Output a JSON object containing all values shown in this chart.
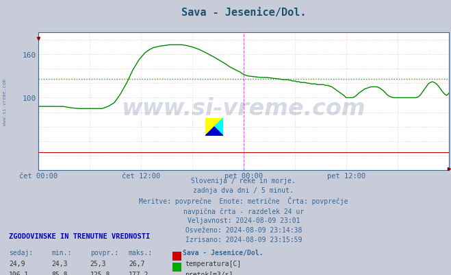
{
  "title": "Sava - Jesenice/Dol.",
  "title_color": "#1a5276",
  "bg_color": "#c8ccd8",
  "plot_bg_color": "#ffffff",
  "fig_width": 6.59,
  "fig_height": 4.02,
  "dpi": 100,
  "ylim": [
    0,
    190
  ],
  "yticks": [
    100,
    160
  ],
  "xlabel_ticks": [
    "čet 00:00",
    "čet 12:00",
    "pet 00:00",
    "pet 12:00"
  ],
  "xlabel_tick_positions": [
    0.0,
    0.25,
    0.5,
    0.75
  ],
  "grid_color_h": "#ffaaaa",
  "grid_color_v": "#ffaaaa",
  "avg_line_color": "#00bb00",
  "avg_line_value": 125.8,
  "vline_color": "#ff44ff",
  "red_line_color": "#bb0000",
  "green_line_color": "#008800",
  "watermark_text": "www.si-vreme.com",
  "watermark_color": "#1a3a6b",
  "watermark_alpha": 0.18,
  "subtitle_lines": [
    "Slovenija / reke in morje.",
    "zadnja dva dni / 5 minut.",
    "Meritve: povprečne  Enote: metrične  Črta: povprečje",
    "navpična črta - razdelek 24 ur",
    "Veljavnost: 2024-08-09 23:01",
    "Osveženo: 2024-08-09 23:14:38",
    "Izrisano: 2024-08-09 23:15:59"
  ],
  "table_header": "ZGODOVINSKE IN TRENUTNE VREDNOSTI",
  "table_cols": [
    "sedaj:",
    "min.:",
    "povpr.:",
    "maks.:"
  ],
  "table_col_header": "Sava - Jesenice/Dol.",
  "table_rows": [
    {
      "values": [
        "24,9",
        "24,3",
        "25,3",
        "26,7"
      ],
      "label": "temperatura[C]",
      "color": "#cc0000"
    },
    {
      "values": [
        "106,1",
        "85,8",
        "125,8",
        "177,2"
      ],
      "label": "pretok[m3/s]",
      "color": "#00aa00"
    }
  ],
  "temp_data_value": 25.0,
  "n_points": 576,
  "flow_keypoints": [
    [
      0.0,
      88
    ],
    [
      0.06,
      88
    ],
    [
      0.08,
      86
    ],
    [
      0.1,
      85
    ],
    [
      0.12,
      85
    ],
    [
      0.14,
      85
    ],
    [
      0.155,
      85
    ],
    [
      0.16,
      86
    ],
    [
      0.17,
      88
    ],
    [
      0.185,
      93
    ],
    [
      0.2,
      105
    ],
    [
      0.215,
      120
    ],
    [
      0.23,
      138
    ],
    [
      0.245,
      152
    ],
    [
      0.26,
      162
    ],
    [
      0.27,
      166
    ],
    [
      0.28,
      169
    ],
    [
      0.295,
      171
    ],
    [
      0.31,
      172
    ],
    [
      0.32,
      173
    ],
    [
      0.34,
      173
    ],
    [
      0.35,
      173
    ],
    [
      0.36,
      172
    ],
    [
      0.375,
      170
    ],
    [
      0.39,
      167
    ],
    [
      0.405,
      163
    ],
    [
      0.415,
      160
    ],
    [
      0.425,
      157
    ],
    [
      0.44,
      152
    ],
    [
      0.455,
      147
    ],
    [
      0.465,
      143
    ],
    [
      0.475,
      140
    ],
    [
      0.485,
      137
    ],
    [
      0.49,
      136
    ],
    [
      0.495,
      134
    ],
    [
      0.5,
      132
    ],
    [
      0.51,
      130
    ],
    [
      0.525,
      129
    ],
    [
      0.54,
      128
    ],
    [
      0.555,
      128
    ],
    [
      0.57,
      127
    ],
    [
      0.585,
      126
    ],
    [
      0.595,
      125
    ],
    [
      0.605,
      125
    ],
    [
      0.615,
      124
    ],
    [
      0.62,
      123
    ],
    [
      0.625,
      123
    ],
    [
      0.63,
      122
    ],
    [
      0.635,
      122
    ],
    [
      0.64,
      121
    ],
    [
      0.645,
      121
    ],
    [
      0.65,
      121
    ],
    [
      0.655,
      120
    ],
    [
      0.66,
      120
    ],
    [
      0.665,
      119
    ],
    [
      0.67,
      119
    ],
    [
      0.675,
      119
    ],
    [
      0.68,
      118
    ],
    [
      0.685,
      118
    ],
    [
      0.69,
      118
    ],
    [
      0.695,
      118
    ],
    [
      0.7,
      117
    ],
    [
      0.705,
      117
    ],
    [
      0.71,
      116
    ],
    [
      0.715,
      115
    ],
    [
      0.72,
      113
    ],
    [
      0.725,
      111
    ],
    [
      0.73,
      109
    ],
    [
      0.735,
      107
    ],
    [
      0.74,
      105
    ],
    [
      0.745,
      103
    ],
    [
      0.748,
      101
    ],
    [
      0.75,
      100
    ],
    [
      0.755,
      100
    ],
    [
      0.76,
      100
    ],
    [
      0.765,
      100
    ],
    [
      0.77,
      101
    ],
    [
      0.775,
      103
    ],
    [
      0.78,
      106
    ],
    [
      0.785,
      108
    ],
    [
      0.79,
      110
    ],
    [
      0.795,
      112
    ],
    [
      0.8,
      113
    ],
    [
      0.805,
      114
    ],
    [
      0.81,
      115
    ],
    [
      0.815,
      115
    ],
    [
      0.82,
      115
    ],
    [
      0.825,
      115
    ],
    [
      0.83,
      114
    ],
    [
      0.835,
      112
    ],
    [
      0.84,
      110
    ],
    [
      0.845,
      107
    ],
    [
      0.85,
      104
    ],
    [
      0.855,
      102
    ],
    [
      0.86,
      101
    ],
    [
      0.865,
      100
    ],
    [
      0.87,
      100
    ],
    [
      0.88,
      100
    ],
    [
      0.89,
      100
    ],
    [
      0.9,
      100
    ],
    [
      0.905,
      100
    ],
    [
      0.91,
      100
    ],
    [
      0.915,
      100
    ],
    [
      0.92,
      100
    ],
    [
      0.925,
      101
    ],
    [
      0.93,
      103
    ],
    [
      0.935,
      107
    ],
    [
      0.94,
      111
    ],
    [
      0.945,
      115
    ],
    [
      0.95,
      119
    ],
    [
      0.955,
      121
    ],
    [
      0.96,
      122
    ],
    [
      0.965,
      121
    ],
    [
      0.97,
      119
    ],
    [
      0.975,
      116
    ],
    [
      0.98,
      112
    ],
    [
      0.985,
      108
    ],
    [
      0.99,
      105
    ],
    [
      0.995,
      103
    ],
    [
      1.0,
      106
    ]
  ]
}
